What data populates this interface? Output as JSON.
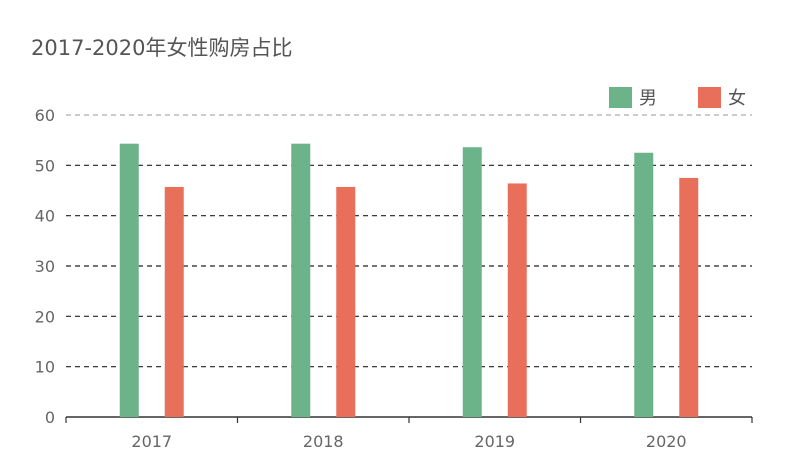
{
  "chart_data": {
    "type": "bar",
    "title": "2017-2020年女性购房占比",
    "categories": [
      "2017",
      "2018",
      "2019",
      "2020"
    ],
    "series": [
      {
        "name": "男",
        "values": [
          54.3,
          54.3,
          53.6,
          52.5
        ],
        "color": "#6db38a"
      },
      {
        "name": "女",
        "values": [
          45.7,
          45.7,
          46.4,
          47.5
        ],
        "color": "#e8705b"
      }
    ],
    "ylim": [
      0,
      60
    ],
    "yticks": [
      "0",
      "10",
      "20",
      "30",
      "40",
      "50",
      "60"
    ],
    "grid": true,
    "legend_position": "top-right"
  }
}
